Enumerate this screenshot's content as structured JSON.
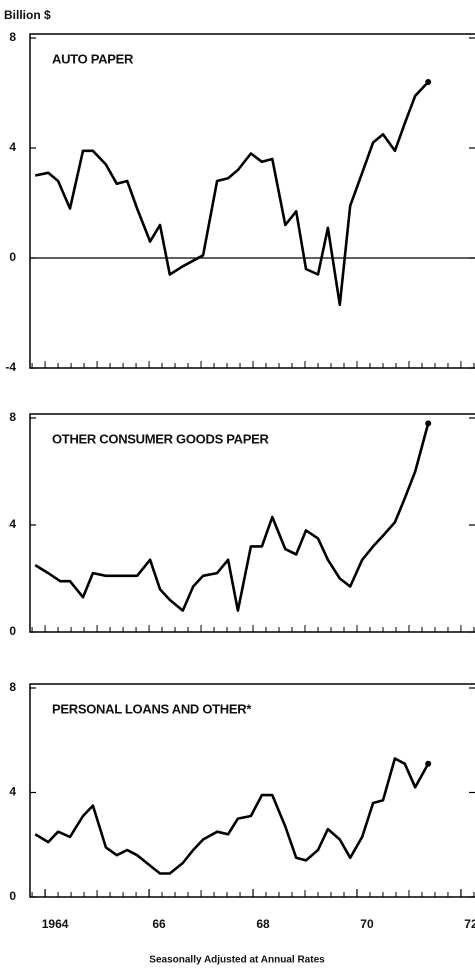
{
  "unit_label": "Billion $",
  "footer": "Seasonally Adjusted at Annual Rates",
  "chart_data": [
    {
      "type": "line",
      "title": "AUTO PAPER",
      "zero_line": true,
      "color": "#000000",
      "x": [
        1963.81,
        1964.06,
        1964.25,
        1964.48,
        1964.73,
        1964.92,
        1965.17,
        1965.38,
        1965.58,
        1965.77,
        1966.02,
        1966.21,
        1966.4,
        1966.65,
        1967.04,
        1967.31,
        1967.52,
        1967.71,
        1967.96,
        1968.17,
        1968.37,
        1968.62,
        1968.83,
        1969.02,
        1969.25,
        1969.44,
        1969.67,
        1969.87,
        1970.1,
        1970.31,
        1970.5,
        1970.73,
        1970.92,
        1971.12,
        1971.37
      ],
      "values": [
        3.0,
        3.1,
        2.8,
        1.8,
        3.9,
        3.9,
        3.4,
        2.7,
        2.8,
        1.8,
        0.6,
        1.2,
        -0.6,
        -0.3,
        0.1,
        2.8,
        2.9,
        3.2,
        3.8,
        3.5,
        3.6,
        1.2,
        1.7,
        -0.4,
        -0.6,
        1.1,
        -1.7,
        1.9,
        3.1,
        4.2,
        4.5,
        3.9,
        4.9,
        5.9,
        6.4
      ],
      "xlim": [
        1963.71,
        1972.27
      ],
      "ylim": [
        -4,
        8
      ],
      "yticks": [
        8,
        4,
        0,
        -4
      ]
    },
    {
      "type": "line",
      "title": "OTHER CONSUMER GOODS PAPER",
      "color": "#000000",
      "x": [
        1963.81,
        1964.06,
        1964.29,
        1964.48,
        1964.73,
        1964.92,
        1965.17,
        1965.58,
        1965.77,
        1966.02,
        1966.21,
        1966.4,
        1966.65,
        1966.85,
        1967.04,
        1967.31,
        1967.52,
        1967.71,
        1967.96,
        1968.17,
        1968.37,
        1968.62,
        1968.83,
        1969.02,
        1969.25,
        1969.44,
        1969.67,
        1969.87,
        1970.1,
        1970.31,
        1970.5,
        1970.73,
        1970.92,
        1971.12,
        1971.37
      ],
      "values": [
        2.5,
        2.2,
        1.9,
        1.9,
        1.3,
        2.2,
        2.1,
        2.1,
        2.1,
        2.7,
        1.6,
        1.2,
        0.8,
        1.7,
        2.1,
        2.2,
        2.7,
        0.8,
        3.2,
        3.2,
        4.3,
        3.1,
        2.9,
        3.8,
        3.5,
        2.7,
        2.0,
        1.7,
        2.7,
        3.2,
        3.6,
        4.1,
        5.0,
        6.0,
        7.8
      ],
      "xlim": [
        1963.71,
        1972.27
      ],
      "ylim": [
        0,
        8
      ],
      "yticks": [
        8,
        4,
        0
      ]
    },
    {
      "type": "line",
      "title": "PERSONAL LOANS AND OTHER*",
      "color": "#000000",
      "x": [
        1963.81,
        1964.06,
        1964.25,
        1964.48,
        1964.73,
        1964.92,
        1965.17,
        1965.38,
        1965.58,
        1965.77,
        1966.02,
        1966.21,
        1966.4,
        1966.65,
        1966.85,
        1967.04,
        1967.31,
        1967.52,
        1967.71,
        1967.96,
        1968.17,
        1968.37,
        1968.62,
        1968.83,
        1969.02,
        1969.25,
        1969.44,
        1969.67,
        1969.87,
        1970.1,
        1970.31,
        1970.5,
        1970.73,
        1970.92,
        1971.12,
        1971.37
      ],
      "values": [
        2.4,
        2.1,
        2.5,
        2.3,
        3.1,
        3.5,
        1.9,
        1.6,
        1.8,
        1.6,
        1.2,
        0.9,
        0.9,
        1.3,
        1.8,
        2.2,
        2.5,
        2.4,
        3.0,
        3.1,
        3.9,
        3.9,
        2.7,
        1.5,
        1.4,
        1.8,
        2.6,
        2.2,
        1.5,
        2.3,
        3.6,
        3.7,
        5.3,
        5.1,
        4.2,
        5.1
      ],
      "xlim": [
        1963.71,
        1972.27
      ],
      "ylim": [
        0,
        8
      ],
      "yticks": [
        8,
        4,
        0
      ],
      "xticks": [
        {
          "value": 1964,
          "label": "1964"
        },
        {
          "value": 1966,
          "label": "66"
        },
        {
          "value": 1968,
          "label": "68"
        },
        {
          "value": 1970,
          "label": "70"
        },
        {
          "value": 1972,
          "label": "72"
        }
      ]
    }
  ]
}
